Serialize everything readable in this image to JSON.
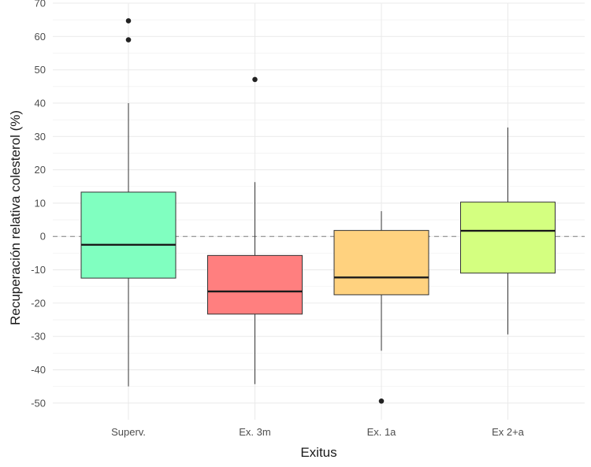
{
  "chart_data": {
    "type": "boxplot",
    "xlabel": "Exitus",
    "ylabel": "Recuperación relativa colesterol (%)",
    "ylim": [
      -55,
      70
    ],
    "yticks": [
      70,
      60,
      50,
      40,
      30,
      20,
      10,
      0,
      -10,
      -20,
      -30,
      -40,
      -50
    ],
    "grid": true,
    "reference_line": {
      "y": 0,
      "style": "dashed",
      "color": "#808080"
    },
    "categories": [
      "Superv.",
      "Ex. 3m",
      "Ex. 1a",
      "Ex 2+a"
    ],
    "boxes": [
      {
        "category": "Superv.",
        "color": "#80ffc0",
        "whisker_low": -45,
        "q1": -12.5,
        "median": -2.5,
        "q3": 13.3,
        "whisker_high": 40,
        "outliers": [
          59,
          64.7
        ]
      },
      {
        "category": "Ex. 3m",
        "color": "#ff7f7f",
        "whisker_low": -44.3,
        "q1": -23.3,
        "median": -16.5,
        "q3": -5.7,
        "whisker_high": 16.3,
        "outliers": [
          47.1
        ]
      },
      {
        "category": "Ex. 1a",
        "color": "#ffd27f",
        "whisker_low": -34.3,
        "q1": -17.5,
        "median": -12.3,
        "q3": 1.8,
        "whisker_high": 7.6,
        "outliers": [
          -49.4
        ]
      },
      {
        "category": "Ex 2+a",
        "color": "#d4ff80",
        "whisker_low": -29.4,
        "q1": -11,
        "median": 1.7,
        "q3": 10.3,
        "whisker_high": 32.7,
        "outliers": []
      }
    ]
  }
}
